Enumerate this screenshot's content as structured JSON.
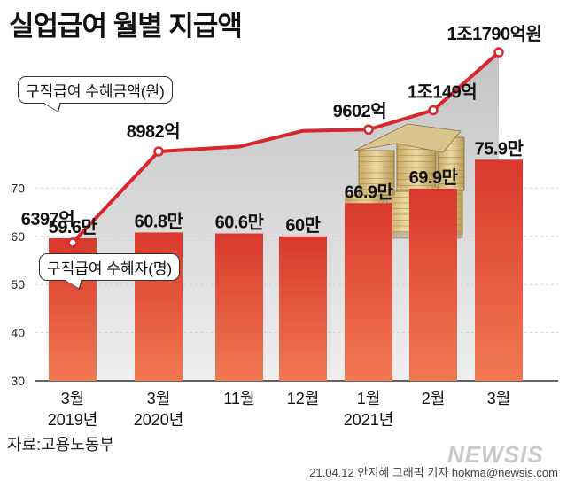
{
  "title": "실업급여 월별 지급액",
  "source": "자료:고용노동부",
  "credit": "21.04.12 안지혜 그래픽 기자 hokma@newsis.com",
  "watermark": "NEWSIS",
  "chart_data": [
    {
      "type": "line",
      "legend_label": "구직급여 수혜금액(원)",
      "x": [
        "2019-03",
        "2020-03",
        "2020-11",
        "2020-12",
        "2021-01",
        "2021-02",
        "2021-03"
      ],
      "values_eok": [
        6397,
        8982,
        null,
        null,
        9602,
        10149,
        11790
      ],
      "point_labels": [
        "6397억",
        "8982억",
        "",
        "",
        "9602억",
        "1조149억",
        "1조1790억원"
      ],
      "color": "#d9262c"
    },
    {
      "type": "bar",
      "legend_label": "구직급여 수혜자(명)",
      "categories": [
        "3월\n2019년",
        "3월\n2020년",
        "11월",
        "12월",
        "1월\n2021년",
        "2월",
        "3월"
      ],
      "values": [
        59.6,
        60.8,
        60.6,
        60,
        66.9,
        69.9,
        75.9
      ],
      "value_labels": [
        "59.6만",
        "60.8만",
        "60.6만",
        "60만",
        "66.9만",
        "69.9만",
        "75.9만"
      ],
      "ylim": [
        30,
        75
      ],
      "yticks": [
        30,
        40,
        50,
        60,
        70
      ],
      "ytick_labels": [
        "30",
        "40",
        "50",
        "60",
        "70"
      ],
      "color": "#e04a36",
      "grid": true
    }
  ]
}
